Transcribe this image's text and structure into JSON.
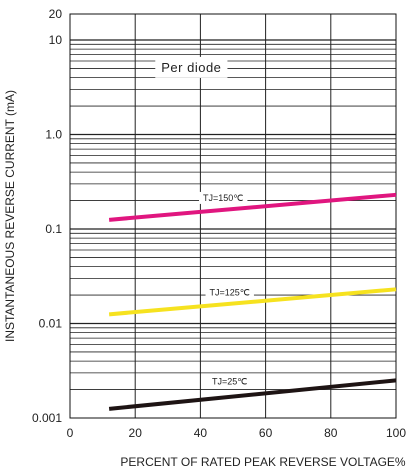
{
  "chart_data": {
    "type": "line",
    "title": "",
    "xlabel": "PERCENT OF RATED PEAK REVERSE VOLTAGE%",
    "ylabel": "INSTANTANEOUS REVERSE CURRENT (mA)",
    "xlim": [
      0,
      100
    ],
    "ylim": [
      0.001,
      20
    ],
    "y_scale": "log",
    "grid": true,
    "x_ticks": [
      0,
      20,
      40,
      60,
      80,
      100
    ],
    "x_tick_labels": [
      "0",
      "20",
      "40",
      "60",
      "80",
      "100"
    ],
    "y_ticks": [
      0.001,
      0.01,
      0.1,
      1.0,
      10,
      20
    ],
    "y_tick_labels": [
      "0.001",
      "0.01",
      "0.1",
      "1.0",
      "10",
      "20"
    ],
    "annotations": [
      {
        "text": "Per diode",
        "x": 28,
        "y": 5
      }
    ],
    "series": [
      {
        "name": "TJ=150℃",
        "color": "#e0167f",
        "x": [
          12,
          100
        ],
        "y": [
          0.125,
          0.23
        ],
        "label_at": {
          "x": 47,
          "y": 0.21
        }
      },
      {
        "name": "TJ=125℃",
        "color": "#f6e21f",
        "x": [
          12,
          100
        ],
        "y": [
          0.0125,
          0.023
        ],
        "label_at": {
          "x": 49,
          "y": 0.021
        }
      },
      {
        "name": "TJ=25℃",
        "color": "#1e1414",
        "x": [
          12,
          100
        ],
        "y": [
          0.00125,
          0.0025
        ],
        "label_at": {
          "x": 49,
          "y": 0.0024
        }
      }
    ]
  }
}
